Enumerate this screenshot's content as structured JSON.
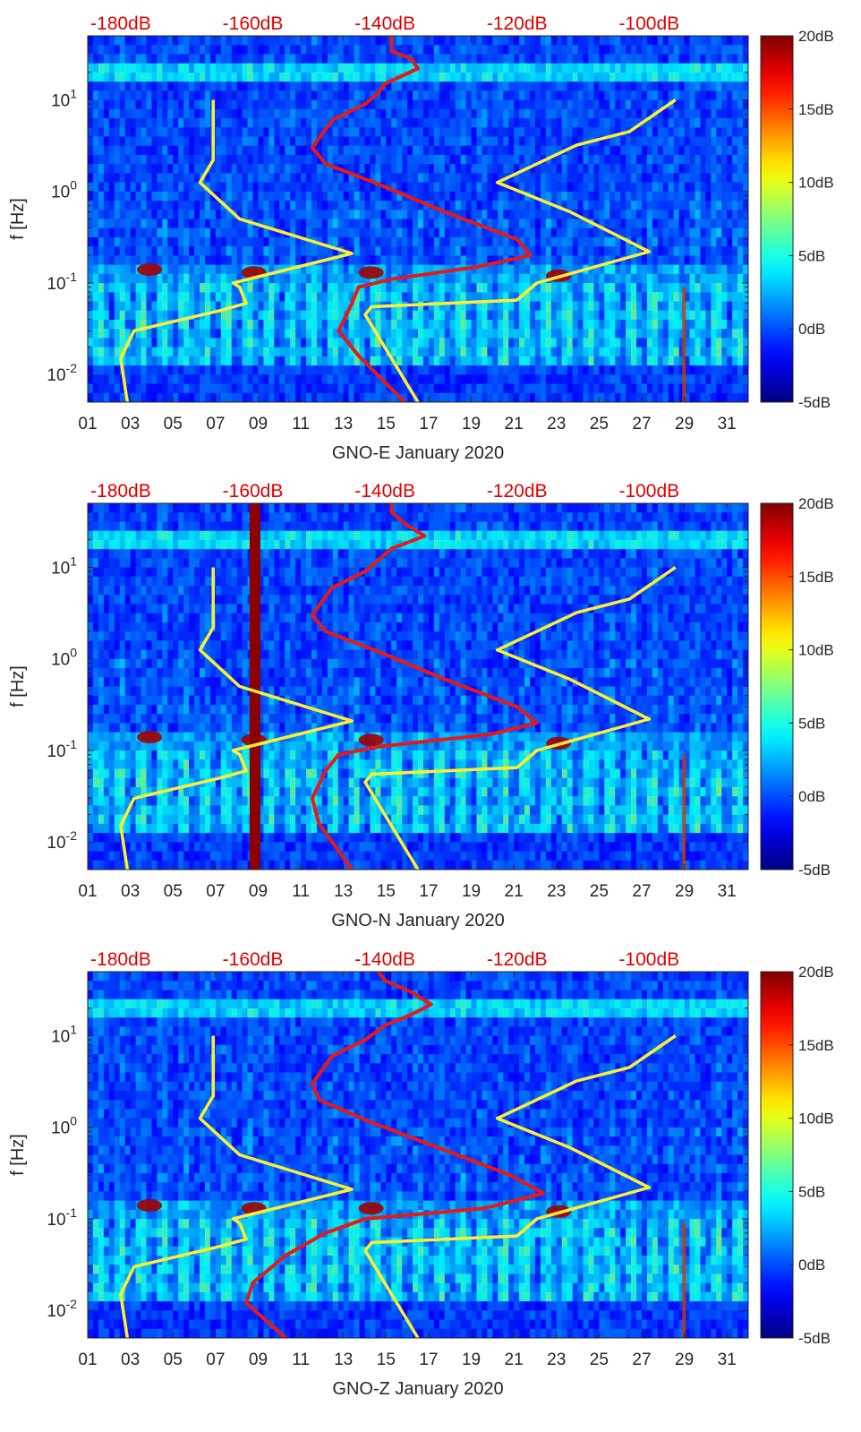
{
  "chart_data": [
    {
      "type": "heatmap",
      "title": "GNO-E January 2020",
      "xlabel": "GNO-E January 2020",
      "ylabel": "f [Hz]",
      "x_ticks": [
        "01",
        "03",
        "05",
        "07",
        "09",
        "11",
        "13",
        "15",
        "17",
        "19",
        "21",
        "23",
        "25",
        "27",
        "29",
        "31"
      ],
      "xlim": [
        1,
        32
      ],
      "y_ticks": [
        "10^-2",
        "10^-1",
        "10^0",
        "10^1"
      ],
      "ylim": [
        0.005,
        50
      ],
      "yscale": "log",
      "top_axis_ticks": [
        "-180dB",
        "-160dB",
        "-140dB",
        "-120dB",
        "-100dB"
      ],
      "colorbar": {
        "ticks": [
          "-5dB",
          "0dB",
          "5dB",
          "10dB",
          "15dB",
          "20dB"
        ],
        "range": [
          -5,
          20
        ],
        "colormap": "jet"
      },
      "series": [
        {
          "name": "yellow-low-noise-model",
          "color": "#ffee33",
          "points": [
            [
              -179,
              0.005
            ],
            [
              -180,
              0.015
            ],
            [
              -178,
              0.03
            ],
            [
              -165,
              0.05
            ],
            [
              -161,
              0.06
            ],
            [
              -162,
              0.09
            ],
            [
              -163,
              0.1
            ],
            [
              -145,
              0.21
            ],
            [
              -162,
              0.5
            ],
            [
              -168,
              1.25
            ],
            [
              -166,
              2.2
            ],
            [
              -166,
              10
            ]
          ]
        },
        {
          "name": "yellow-high-noise-model",
          "color": "#ffee33",
          "points": [
            [
              -135,
              0.005
            ],
            [
              -143,
              0.045
            ],
            [
              -142,
              0.055
            ],
            [
              -120,
              0.065
            ],
            [
              -117,
              0.1
            ],
            [
              -100,
              0.22
            ],
            [
              -112,
              0.6
            ],
            [
              -123,
              1.25
            ],
            [
              -111,
              3.2
            ],
            [
              -103,
              4.5
            ],
            [
              -96,
              10
            ]
          ]
        },
        {
          "name": "red-median",
          "color": "#e11b1b",
          "points": [
            [
              -137,
              0.005
            ],
            [
              -144,
              0.016
            ],
            [
              -147,
              0.03
            ],
            [
              -145,
              0.06
            ],
            [
              -144,
              0.09
            ],
            [
              -139,
              0.11
            ],
            [
              -126,
              0.15
            ],
            [
              -118,
              0.2
            ],
            [
              -120,
              0.3
            ],
            [
              -131,
              0.6
            ],
            [
              -141,
              1.2
            ],
            [
              -149,
              2
            ],
            [
              -151,
              3
            ],
            [
              -148,
              6
            ],
            [
              -143,
              9
            ],
            [
              -141,
              12
            ],
            [
              -140,
              15
            ],
            [
              -135,
              22
            ],
            [
              -136,
              28
            ],
            [
              -139,
              34
            ],
            [
              -139,
              50
            ]
          ]
        }
      ]
    },
    {
      "type": "heatmap",
      "title": "GNO-N January 2020",
      "xlabel": "GNO-N January 2020",
      "ylabel": "f [Hz]",
      "x_ticks": [
        "01",
        "03",
        "05",
        "07",
        "09",
        "11",
        "13",
        "15",
        "17",
        "19",
        "21",
        "23",
        "25",
        "27",
        "29",
        "31"
      ],
      "xlim": [
        1,
        32
      ],
      "y_ticks": [
        "10^-2",
        "10^-1",
        "10^0",
        "10^1"
      ],
      "ylim": [
        0.005,
        50
      ],
      "yscale": "log",
      "top_axis_ticks": [
        "-180dB",
        "-160dB",
        "-140dB",
        "-120dB",
        "-100dB"
      ],
      "colorbar": {
        "ticks": [
          "-5dB",
          "0dB",
          "5dB",
          "10dB",
          "15dB",
          "20dB"
        ],
        "range": [
          -5,
          20
        ],
        "colormap": "jet"
      },
      "series": [
        {
          "name": "yellow-low-noise-model",
          "color": "#ffee33",
          "points": [
            [
              -179,
              0.005
            ],
            [
              -180,
              0.015
            ],
            [
              -178,
              0.03
            ],
            [
              -165,
              0.05
            ],
            [
              -161,
              0.06
            ],
            [
              -162,
              0.09
            ],
            [
              -163,
              0.1
            ],
            [
              -145,
              0.21
            ],
            [
              -162,
              0.5
            ],
            [
              -168,
              1.25
            ],
            [
              -166,
              2.2
            ],
            [
              -166,
              10
            ]
          ]
        },
        {
          "name": "yellow-high-noise-model",
          "color": "#ffee33",
          "points": [
            [
              -135,
              0.005
            ],
            [
              -143,
              0.045
            ],
            [
              -142,
              0.055
            ],
            [
              -120,
              0.065
            ],
            [
              -117,
              0.1
            ],
            [
              -100,
              0.22
            ],
            [
              -112,
              0.6
            ],
            [
              -123,
              1.25
            ],
            [
              -111,
              3.2
            ],
            [
              -103,
              4.5
            ],
            [
              -96,
              10
            ]
          ]
        },
        {
          "name": "red-median",
          "color": "#e11b1b",
          "points": [
            [
              -145,
              0.005
            ],
            [
              -150,
              0.016
            ],
            [
              -151,
              0.03
            ],
            [
              -149,
              0.06
            ],
            [
              -147,
              0.09
            ],
            [
              -141,
              0.11
            ],
            [
              -124,
              0.15
            ],
            [
              -117,
              0.2
            ],
            [
              -120,
              0.3
            ],
            [
              -131,
              0.6
            ],
            [
              -141,
              1.2
            ],
            [
              -149,
              2
            ],
            [
              -151,
              3
            ],
            [
              -148,
              6
            ],
            [
              -143,
              9
            ],
            [
              -141,
              12
            ],
            [
              -139,
              16
            ],
            [
              -134,
              22
            ],
            [
              -137,
              30
            ],
            [
              -139,
              40
            ],
            [
              -139,
              50
            ]
          ]
        }
      ]
    },
    {
      "type": "heatmap",
      "title": "GNO-Z January 2020",
      "xlabel": "GNO-Z January 2020",
      "ylabel": "f [Hz]",
      "x_ticks": [
        "01",
        "03",
        "05",
        "07",
        "09",
        "11",
        "13",
        "15",
        "17",
        "19",
        "21",
        "23",
        "25",
        "27",
        "29",
        "31"
      ],
      "xlim": [
        1,
        32
      ],
      "y_ticks": [
        "10^-2",
        "10^-1",
        "10^0",
        "10^1"
      ],
      "ylim": [
        0.005,
        50
      ],
      "yscale": "log",
      "top_axis_ticks": [
        "-180dB",
        "-160dB",
        "-140dB",
        "-120dB",
        "-100dB"
      ],
      "colorbar": {
        "ticks": [
          "-5dB",
          "0dB",
          "5dB",
          "10dB",
          "15dB",
          "20dB"
        ],
        "range": [
          -5,
          20
        ],
        "colormap": "jet"
      },
      "series": [
        {
          "name": "yellow-low-noise-model",
          "color": "#ffee33",
          "points": [
            [
              -179,
              0.005
            ],
            [
              -180,
              0.015
            ],
            [
              -178,
              0.03
            ],
            [
              -165,
              0.05
            ],
            [
              -161,
              0.06
            ],
            [
              -162,
              0.09
            ],
            [
              -163,
              0.1
            ],
            [
              -145,
              0.21
            ],
            [
              -162,
              0.5
            ],
            [
              -168,
              1.25
            ],
            [
              -166,
              2.2
            ],
            [
              -166,
              10
            ]
          ]
        },
        {
          "name": "yellow-high-noise-model",
          "color": "#ffee33",
          "points": [
            [
              -135,
              0.005
            ],
            [
              -143,
              0.045
            ],
            [
              -142,
              0.055
            ],
            [
              -120,
              0.065
            ],
            [
              -117,
              0.1
            ],
            [
              -100,
              0.22
            ],
            [
              -112,
              0.6
            ],
            [
              -123,
              1.25
            ],
            [
              -111,
              3.2
            ],
            [
              -103,
              4.5
            ],
            [
              -96,
              10
            ]
          ]
        },
        {
          "name": "red-median",
          "color": "#e11b1b",
          "points": [
            [
              -155,
              0.005
            ],
            [
              -161,
              0.012
            ],
            [
              -160,
              0.02
            ],
            [
              -155,
              0.04
            ],
            [
              -149,
              0.07
            ],
            [
              -143,
              0.1
            ],
            [
              -125,
              0.13
            ],
            [
              -116,
              0.19
            ],
            [
              -121,
              0.3
            ],
            [
              -132,
              0.6
            ],
            [
              -143,
              1.2
            ],
            [
              -150,
              2
            ],
            [
              -151,
              3
            ],
            [
              -148,
              6
            ],
            [
              -143,
              9
            ],
            [
              -140,
              13
            ],
            [
              -136,
              17
            ],
            [
              -133,
              22
            ],
            [
              -136,
              30
            ],
            [
              -140,
              40
            ],
            [
              -141,
              50
            ]
          ]
        }
      ]
    }
  ]
}
